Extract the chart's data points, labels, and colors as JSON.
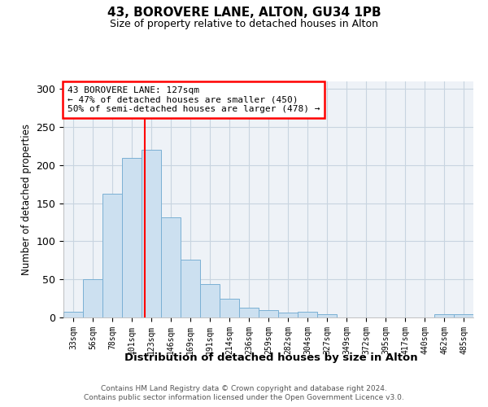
{
  "title": "43, BOROVERE LANE, ALTON, GU34 1PB",
  "subtitle": "Size of property relative to detached houses in Alton",
  "xlabel": "Distribution of detached houses by size in Alton",
  "ylabel": "Number of detached properties",
  "footnote1": "Contains HM Land Registry data © Crown copyright and database right 2024.",
  "footnote2": "Contains public sector information licensed under the Open Government Licence v3.0.",
  "categories": [
    "33sqm",
    "56sqm",
    "78sqm",
    "101sqm",
    "123sqm",
    "146sqm",
    "169sqm",
    "191sqm",
    "214sqm",
    "236sqm",
    "259sqm",
    "282sqm",
    "304sqm",
    "327sqm",
    "349sqm",
    "372sqm",
    "395sqm",
    "417sqm",
    "440sqm",
    "462sqm",
    "485sqm"
  ],
  "values": [
    8,
    50,
    163,
    210,
    220,
    131,
    76,
    44,
    25,
    13,
    10,
    6,
    8,
    4,
    0,
    0,
    0,
    0,
    0,
    4,
    4
  ],
  "bar_color": "#cce0f0",
  "bar_edge_color": "#7ab0d4",
  "marker_value": 127,
  "annotation_title": "43 BOROVERE LANE: 127sqm",
  "annotation_line1": "← 47% of detached houses are smaller (450)",
  "annotation_line2": "50% of semi-detached houses are larger (478) →",
  "ylim": [
    0,
    310
  ],
  "yticks": [
    0,
    50,
    100,
    150,
    200,
    250,
    300
  ],
  "annotation_box_color": "white",
  "annotation_box_edge": "red",
  "marker_line_color": "red",
  "background_color": "white",
  "plot_bg_color": "#eef2f7",
  "grid_color": "#c8d4e0"
}
